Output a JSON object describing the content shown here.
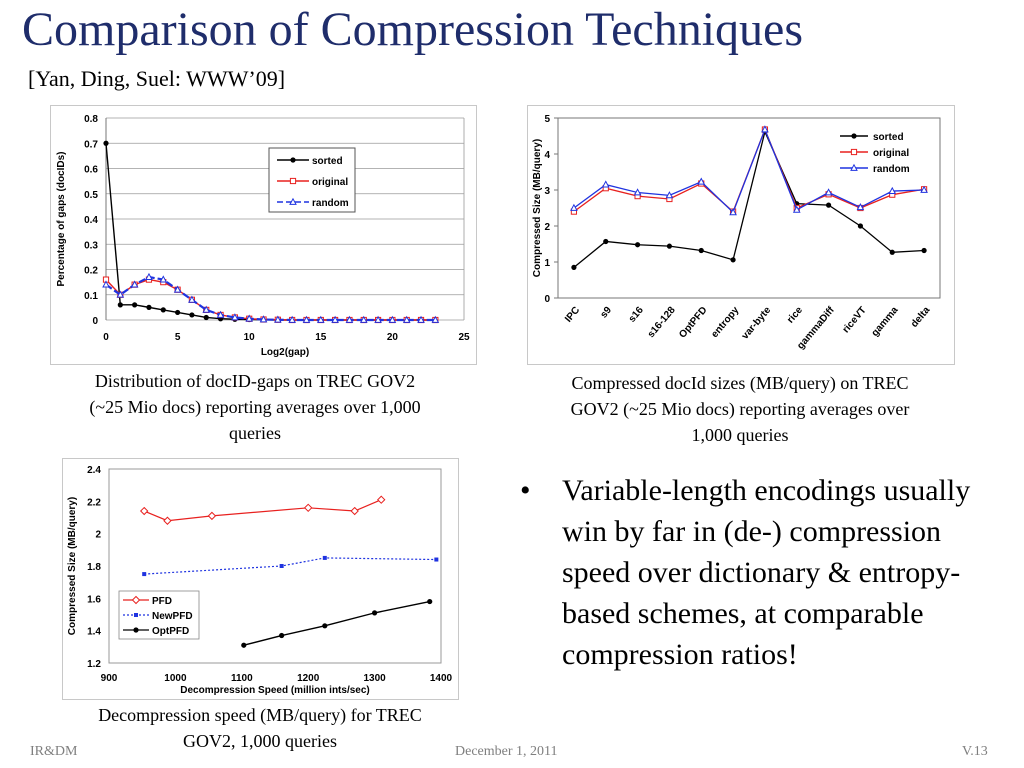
{
  "slide": {
    "title": "Comparison of Compression Techniques",
    "subtitle": "[Yan, Ding, Suel: WWW’09]",
    "captions": [
      "Distribution of docID-gaps on TREC GOV2 (~25 Mio docs) reporting averages over 1,000 queries",
      "Compressed docId sizes (MB/query) on TREC GOV2 (~25 Mio docs) reporting averages over 1,000 queries",
      "Decompression speed (MB/query) for TREC GOV2, 1,000 queries"
    ],
    "bullet": "Variable-length encodings usually win by far in (de-) compression speed over dictionary & entropy-based schemes, at comparable compression ratios!",
    "footer": {
      "left": "IR&DM",
      "center": "December 1, 2011",
      "right": "V.13"
    }
  },
  "colors": {
    "title": "#1f2d6b",
    "sorted": "#000000",
    "original": "#e8211f",
    "random": "#1f33e0",
    "PFD": "#e8211f",
    "NewPFD": "#1f33e0",
    "OptPFD": "#000000"
  },
  "chart_data": [
    {
      "type": "line",
      "xlabel": "Log2(gap)",
      "ylabel": "Percentage of gaps (docIDs)",
      "xlim": [
        0,
        25
      ],
      "ylim": [
        0,
        0.8
      ],
      "xticks": [
        "0",
        "5",
        "10",
        "15",
        "20",
        "25"
      ],
      "yticks": [
        "0",
        "0.1",
        "0.2",
        "0.3",
        "0.4",
        "0.5",
        "0.6",
        "0.7",
        "0.8"
      ],
      "legend": "top-right",
      "grid": true,
      "x": [
        0,
        1,
        2,
        3,
        4,
        5,
        6,
        7,
        8,
        9,
        10,
        11,
        12,
        13,
        14,
        15,
        16,
        17,
        18,
        19,
        20,
        21,
        22,
        23
      ],
      "series": [
        {
          "name": "sorted",
          "values": [
            0.7,
            0.06,
            0.06,
            0.05,
            0.04,
            0.03,
            0.02,
            0.01,
            0.005,
            0.003,
            0.002,
            0.001,
            0,
            0,
            0,
            0,
            0,
            0,
            0,
            0,
            0,
            0,
            0,
            0
          ]
        },
        {
          "name": "original",
          "values": [
            0.16,
            0.1,
            0.14,
            0.16,
            0.15,
            0.12,
            0.08,
            0.04,
            0.02,
            0.01,
            0.005,
            0.002,
            0.001,
            0,
            0,
            0,
            0,
            0,
            0,
            0,
            0,
            0,
            0,
            0
          ]
        },
        {
          "name": "random",
          "values": [
            0.14,
            0.1,
            0.14,
            0.17,
            0.16,
            0.12,
            0.08,
            0.04,
            0.02,
            0.01,
            0.005,
            0.002,
            0.001,
            0,
            0,
            0,
            0,
            0,
            0,
            0,
            0,
            0,
            0,
            0
          ]
        }
      ]
    },
    {
      "type": "line",
      "xlabel": "",
      "ylabel": "Compressed Size (MB/query)",
      "ylim": [
        0,
        5
      ],
      "yticks": [
        "0",
        "1",
        "2",
        "3",
        "4",
        "5"
      ],
      "legend": "top-right",
      "grid": false,
      "categories": [
        "IPC",
        "s9",
        "s16",
        "s16-128",
        "OptPFD",
        "entropy",
        "var-byte",
        "rice",
        "gammaDiff",
        "riceVT",
        "gamma",
        "delta"
      ],
      "series": [
        {
          "name": "sorted",
          "values": [
            0.85,
            1.57,
            1.48,
            1.44,
            1.32,
            1.06,
            4.62,
            2.62,
            2.58,
            2.0,
            1.27,
            1.32
          ]
        },
        {
          "name": "original",
          "values": [
            2.4,
            3.05,
            2.83,
            2.75,
            3.18,
            2.4,
            4.68,
            2.5,
            2.88,
            2.5,
            2.87,
            3.02
          ]
        },
        {
          "name": "random",
          "values": [
            2.5,
            3.15,
            2.93,
            2.85,
            3.23,
            2.38,
            4.68,
            2.45,
            2.93,
            2.52,
            2.97,
            3.0
          ]
        }
      ]
    },
    {
      "type": "line",
      "xlabel": "Decompression Speed (million ints/sec)",
      "ylabel": "Compressed Size (MB/query)",
      "xlim": [
        900,
        1400
      ],
      "ylim": [
        1.2,
        2.4
      ],
      "xticks": [
        "900",
        "1000",
        "1100",
        "1200",
        "1300",
        "1400"
      ],
      "yticks": [
        "1.2",
        "1.4",
        "1.6",
        "1.8",
        "2",
        "2.2",
        "2.4"
      ],
      "legend": "bottom-left",
      "grid": false,
      "series": [
        {
          "name": "PFD",
          "points": [
            [
              953,
              2.14
            ],
            [
              988,
              2.08
            ],
            [
              1055,
              2.11
            ],
            [
              1200,
              2.16
            ],
            [
              1270,
              2.14
            ],
            [
              1310,
              2.21
            ]
          ]
        },
        {
          "name": "NewPFD",
          "points": [
            [
              953,
              1.75
            ],
            [
              1160,
              1.8
            ],
            [
              1225,
              1.85
            ],
            [
              1393,
              1.84
            ]
          ]
        },
        {
          "name": "OptPFD",
          "points": [
            [
              1103,
              1.31
            ],
            [
              1160,
              1.37
            ],
            [
              1225,
              1.43
            ],
            [
              1300,
              1.51
            ],
            [
              1383,
              1.58
            ]
          ]
        }
      ]
    }
  ]
}
